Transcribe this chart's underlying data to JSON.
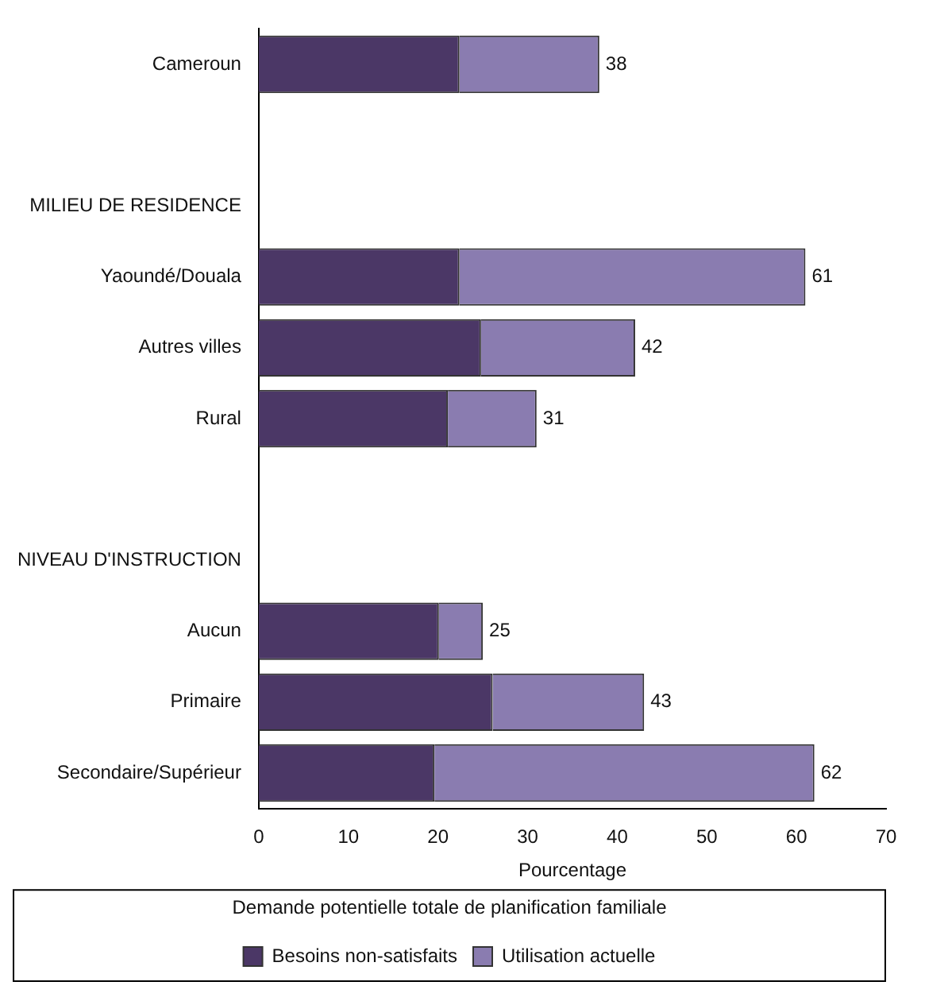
{
  "chart_data": {
    "type": "bar",
    "orientation": "horizontal",
    "stacked": true,
    "categories": [
      "Cameroun",
      null,
      "MILIEU DE RESIDENCE",
      "Yaoundé/Douala",
      "Autres villes",
      "Rural",
      null,
      "NIVEAU D'INSTRUCTION",
      "Aucun",
      "Primaire",
      "Secondaire/Supérieur"
    ],
    "series": [
      {
        "name": "Besoins non-satisfaits",
        "color": "#4b3766",
        "values": [
          22.4,
          null,
          null,
          22.4,
          24.8,
          21.1,
          null,
          null,
          20.1,
          26.1,
          19.6
        ]
      },
      {
        "name": "Utilisation actuelle",
        "color": "#8a7cb0",
        "values": [
          15.6,
          null,
          null,
          38.6,
          17.2,
          9.9,
          null,
          null,
          4.9,
          16.9,
          42.4
        ]
      }
    ],
    "totals": [
      "38",
      null,
      null,
      "61",
      "42",
      "31",
      null,
      null,
      "25",
      "43",
      "62"
    ],
    "xlim": [
      0,
      70
    ],
    "xticks": [
      0,
      10,
      20,
      30,
      40,
      50,
      60,
      70
    ],
    "xlabel": "Pourcentage",
    "legend_title": "Demande potentielle totale de planification familiale",
    "legend": "bottom",
    "grid": false
  }
}
